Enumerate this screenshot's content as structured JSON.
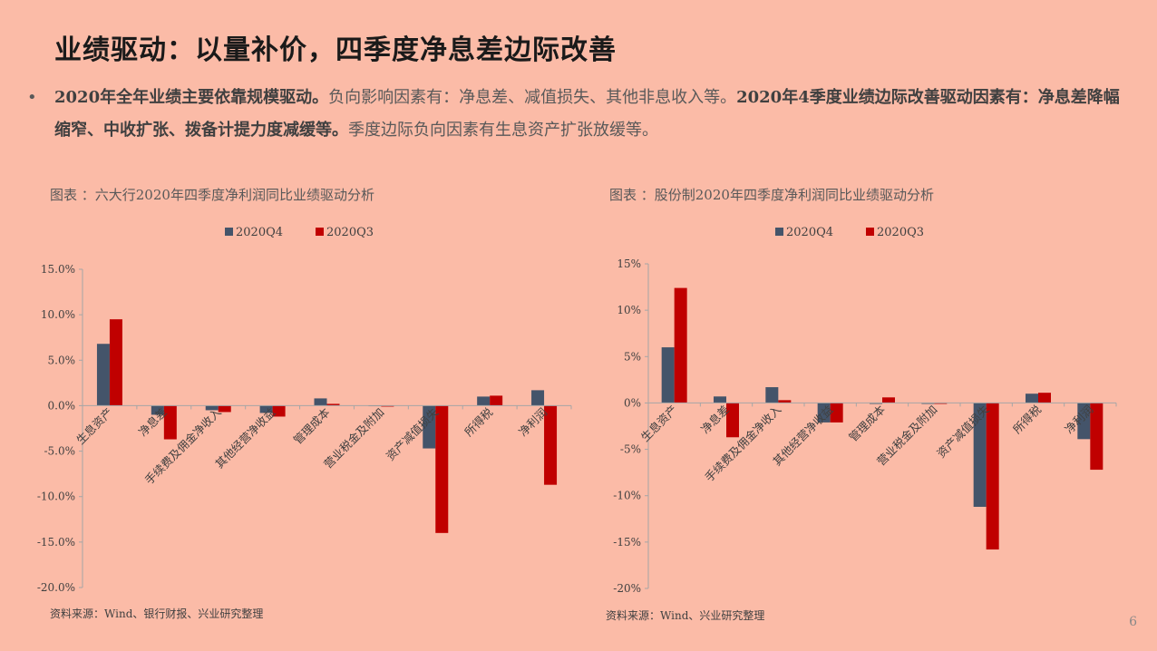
{
  "slide": {
    "title": "业绩驱动：以量补价，四季度净息差边际改善",
    "bullet_marker": "•",
    "bullet_part1": "2020年全年业绩主要依靠规模驱动。",
    "bullet_part2": "负向影响因素有：净息差、减值损失、其他非息收入等。",
    "bullet_part3": "2020年4季度业绩边际改善驱动因素有：净息差降幅缩窄、中收扩张、拨备计提力度减缓等。",
    "bullet_part4": "季度边际负向因素有生息资产扩张放缓等。",
    "page_number": "6"
  },
  "colors": {
    "q4": "#44546A",
    "q3": "#C00000",
    "background": "#FBBBA7",
    "axis": "#A6A6A6"
  },
  "chart_data": [
    {
      "type": "bar",
      "caption": "图表 ：六大行2020年四季度净利润同比业绩驱动分析",
      "source": "资料来源：Wind、银行财报、兴业研究整理",
      "categories": [
        "生息资产",
        "净息差",
        "手续费及佣金净收入",
        "其他经营净收益",
        "管理成本",
        "营业税金及附加",
        "资产减值损失",
        "所得税",
        "净利润"
      ],
      "series": [
        {
          "name": "2020Q4",
          "values": [
            6.8,
            -1.0,
            -0.5,
            -0.8,
            0.8,
            0.0,
            -4.7,
            1.0,
            1.7
          ]
        },
        {
          "name": "2020Q3",
          "values": [
            9.5,
            -3.7,
            -0.7,
            -1.2,
            0.2,
            -0.1,
            -14.0,
            1.1,
            -8.7
          ]
        }
      ],
      "ylim": [
        -20,
        15
      ],
      "yticks": [
        "15.0%",
        "10.0%",
        "5.0%",
        "0.0%",
        "-5.0%",
        "-10.0%",
        "-15.0%",
        "-20.0%"
      ],
      "legend_position": "top"
    },
    {
      "type": "bar",
      "caption": "图表 ：股份制2020年四季度净利润同比业绩驱动分析",
      "source": "资料来源：Wind、兴业研究整理",
      "categories": [
        "生息资产",
        "净息差",
        "手续费及佣金净收入",
        "其他经营净收益",
        "管理成本",
        "营业税金及附加",
        "资产减值损失",
        "所得税",
        "净利润"
      ],
      "series": [
        {
          "name": "2020Q4",
          "values": [
            6.0,
            0.7,
            1.7,
            -2.1,
            -0.1,
            -0.1,
            -11.2,
            1.0,
            -3.9
          ]
        },
        {
          "name": "2020Q3",
          "values": [
            12.4,
            -3.7,
            0.3,
            -2.1,
            0.6,
            -0.1,
            -15.8,
            1.1,
            -7.2
          ]
        }
      ],
      "ylim": [
        -20,
        15
      ],
      "yticks": [
        "15%",
        "10%",
        "5%",
        "0%",
        "-5%",
        "-10%",
        "-15%",
        "-20%"
      ],
      "legend_position": "top"
    }
  ]
}
